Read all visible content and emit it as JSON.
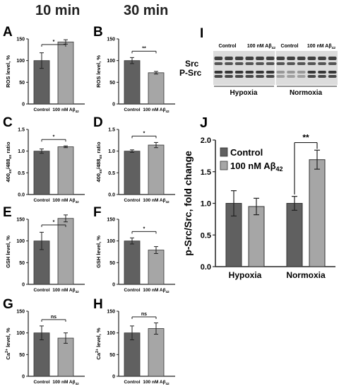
{
  "headers": {
    "col1": "10 min",
    "col2": "30 min"
  },
  "colors": {
    "control": "#606060",
    "treated": "#a6a6a6",
    "axis": "#222222",
    "blot_dark": "#1a1a1a"
  },
  "blot": {
    "letter": "I",
    "lanes": [
      "Control",
      "100 nM Aβ42"
    ],
    "rows": [
      "Src",
      "P-Src"
    ],
    "groups": [
      "Hypoxia",
      "Normoxia"
    ]
  },
  "chart_data": [
    {
      "id": "A",
      "letter": "A",
      "type": "bar",
      "categories": [
        "Control",
        "100 nM Aβ42"
      ],
      "values": [
        100,
        143
      ],
      "errors": [
        18,
        5
      ],
      "ylabel": "ROS level, %",
      "ylim": [
        0,
        150
      ],
      "yticks": [
        0,
        50,
        100,
        150
      ],
      "sig": "*"
    },
    {
      "id": "B",
      "letter": "B",
      "type": "bar",
      "categories": [
        "Control",
        "100 nM Aβ42"
      ],
      "values": [
        100,
        72
      ],
      "errors": [
        7,
        3
      ],
      "ylabel": "ROS level, %",
      "ylim": [
        0,
        150
      ],
      "yticks": [
        0,
        50,
        100,
        150
      ],
      "sig": "**"
    },
    {
      "id": "C",
      "letter": "C",
      "type": "bar",
      "categories": [
        "Control",
        "100 nM Aβ42"
      ],
      "values": [
        1.0,
        1.1
      ],
      "errors": [
        0.05,
        0.02
      ],
      "ylabel": "400ex/488ex ratio",
      "ylim": [
        0,
        1.5
      ],
      "yticks": [
        0.0,
        0.5,
        1.0,
        1.5
      ],
      "sig": "*"
    },
    {
      "id": "D",
      "letter": "D",
      "type": "bar",
      "categories": [
        "Control",
        "100 nM Aβ42"
      ],
      "values": [
        1.0,
        1.14
      ],
      "errors": [
        0.03,
        0.06
      ],
      "ylabel": "400ex/488ex ratio",
      "ylim": [
        0,
        1.5
      ],
      "yticks": [
        0.0,
        0.5,
        1.0,
        1.5
      ],
      "sig": "*"
    },
    {
      "id": "E",
      "letter": "E",
      "type": "bar",
      "categories": [
        "Control",
        "100 nM Aβ42"
      ],
      "values": [
        100,
        152
      ],
      "errors": [
        20,
        8
      ],
      "ylabel": "GSH level, %",
      "ylim": [
        0,
        150
      ],
      "yticks": [
        0,
        50,
        100,
        150
      ],
      "sig": "*"
    },
    {
      "id": "F",
      "letter": "F",
      "type": "bar",
      "categories": [
        "Control",
        "100 nM Aβ42"
      ],
      "values": [
        100,
        79
      ],
      "errors": [
        7,
        8
      ],
      "ylabel": "GSH level, %",
      "ylim": [
        0,
        150
      ],
      "yticks": [
        0,
        50,
        100,
        150
      ],
      "sig": "*"
    },
    {
      "id": "G",
      "letter": "G",
      "type": "bar",
      "categories": [
        "Control",
        "100 nM Aβ42"
      ],
      "values": [
        100,
        88
      ],
      "errors": [
        16,
        12
      ],
      "ylabel": "Ca2+ level, %",
      "ylim": [
        0,
        150
      ],
      "yticks": [
        0,
        50,
        100,
        150
      ],
      "sig": "ns"
    },
    {
      "id": "H",
      "letter": "H",
      "type": "bar",
      "categories": [
        "Control",
        "100 nM Aβ42"
      ],
      "values": [
        100,
        110
      ],
      "errors": [
        16,
        13
      ],
      "ylabel": "Ca2+ level, %",
      "ylim": [
        0,
        150
      ],
      "yticks": [
        0,
        50,
        100,
        150
      ],
      "sig": "ns"
    },
    {
      "id": "J",
      "letter": "J",
      "type": "bar",
      "categories": [
        "Hypoxia",
        "Normoxia"
      ],
      "series": [
        {
          "name": "Control",
          "values": [
            1.0,
            1.0
          ],
          "errors": [
            0.2,
            0.11
          ]
        },
        {
          "name": "100 nM Aβ42",
          "values": [
            0.95,
            1.69
          ],
          "errors": [
            0.13,
            0.15
          ]
        }
      ],
      "ylabel": "p-Src/Src, fold change",
      "ylim": [
        0,
        2.0
      ],
      "yticks": [
        "0.0",
        "0.5",
        "1.0",
        "1.5",
        "2.0"
      ],
      "sig": "**",
      "legend": "top-left"
    }
  ]
}
